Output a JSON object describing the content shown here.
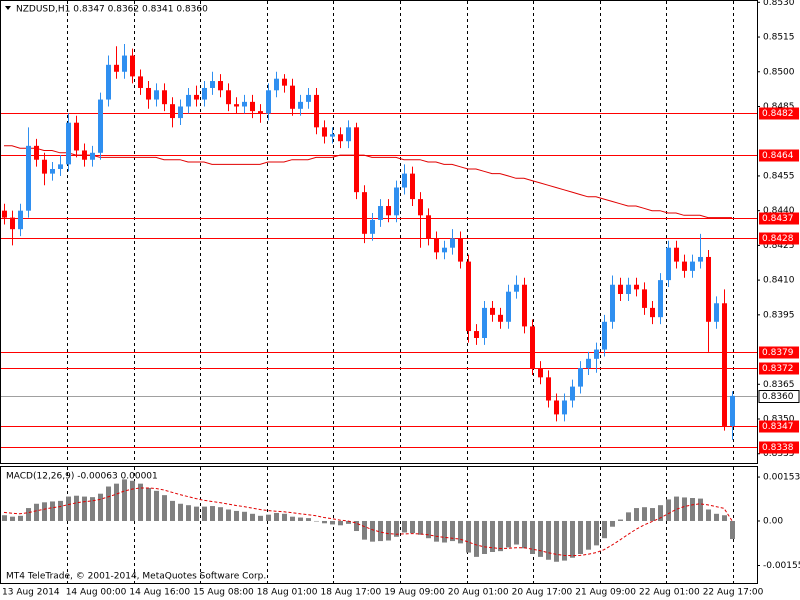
{
  "chart_data": [
    {
      "type": "candlestick",
      "title": "NZDUSD,H1  0.8347 0.8362 0.8341 0.8360",
      "up_color": "#2f8ff0",
      "down_color": "#ff0000",
      "open": [
        0.844,
        0.8437,
        0.8432,
        0.844,
        0.8468,
        0.8462,
        0.8456,
        0.8458,
        0.846,
        0.8478,
        0.8466,
        0.8462,
        0.8465,
        0.8488,
        0.8503,
        0.85,
        0.8507,
        0.8498,
        0.8493,
        0.8488,
        0.8492,
        0.8486,
        0.848,
        0.8485,
        0.849,
        0.8488,
        0.8493,
        0.8496,
        0.8492,
        0.8486,
        0.8485,
        0.8487,
        0.8483,
        0.8482,
        0.8492,
        0.8497,
        0.8494,
        0.8484,
        0.8487,
        0.849,
        0.8476,
        0.8472,
        0.8473,
        0.847,
        0.8476,
        0.8448,
        0.843,
        0.8436,
        0.8442,
        0.8438,
        0.845,
        0.8456,
        0.8445,
        0.8438,
        0.8428,
        0.8422,
        0.8424,
        0.8428,
        0.8418,
        0.8388,
        0.8385,
        0.8398,
        0.8395,
        0.8392,
        0.8405,
        0.8408,
        0.839,
        0.8372,
        0.8368,
        0.8358,
        0.8352,
        0.8358,
        0.8364,
        0.8372,
        0.8376,
        0.838,
        0.8392,
        0.8408,
        0.8404,
        0.8408,
        0.8406,
        0.8398,
        0.8394,
        0.841,
        0.8424,
        0.8418,
        0.8414,
        0.8418,
        0.842,
        0.8392,
        0.84,
        0.8347
      ],
      "high": [
        0.8443,
        0.844,
        0.8443,
        0.8476,
        0.8471,
        0.8465,
        0.8461,
        0.8464,
        0.8482,
        0.8481,
        0.8469,
        0.8468,
        0.8491,
        0.8507,
        0.8511,
        0.8512,
        0.851,
        0.8501,
        0.8496,
        0.8495,
        0.8495,
        0.8489,
        0.8488,
        0.8493,
        0.8494,
        0.8496,
        0.85,
        0.8499,
        0.8495,
        0.8489,
        0.849,
        0.849,
        0.8486,
        0.8495,
        0.85,
        0.8499,
        0.8497,
        0.849,
        0.8493,
        0.8493,
        0.8479,
        0.8476,
        0.8476,
        0.8479,
        0.8478,
        0.8451,
        0.8439,
        0.8445,
        0.8445,
        0.8453,
        0.846,
        0.8459,
        0.8448,
        0.8441,
        0.8431,
        0.8427,
        0.8432,
        0.8431,
        0.8421,
        0.8391,
        0.8401,
        0.8401,
        0.8398,
        0.8408,
        0.8412,
        0.8411,
        0.8393,
        0.8375,
        0.8371,
        0.8361,
        0.8361,
        0.8367,
        0.8375,
        0.8379,
        0.8383,
        0.8395,
        0.8412,
        0.8411,
        0.8411,
        0.8411,
        0.8409,
        0.8401,
        0.8413,
        0.8427,
        0.8427,
        0.8421,
        0.8421,
        0.843,
        0.8423,
        0.8403,
        0.8406,
        0.8362
      ],
      "low": [
        0.8434,
        0.8425,
        0.8429,
        0.8437,
        0.8459,
        0.8451,
        0.8453,
        0.8455,
        0.8457,
        0.8463,
        0.8459,
        0.8459,
        0.8462,
        0.8485,
        0.8497,
        0.8497,
        0.8495,
        0.849,
        0.8484,
        0.8485,
        0.8483,
        0.8476,
        0.8477,
        0.8482,
        0.8485,
        0.8485,
        0.849,
        0.8489,
        0.8483,
        0.8482,
        0.8482,
        0.848,
        0.8478,
        0.8479,
        0.8489,
        0.8491,
        0.8481,
        0.8481,
        0.8484,
        0.8473,
        0.8469,
        0.8469,
        0.8467,
        0.8467,
        0.8445,
        0.8426,
        0.8427,
        0.8433,
        0.8435,
        0.8435,
        0.8447,
        0.8442,
        0.8424,
        0.8425,
        0.8419,
        0.8419,
        0.8421,
        0.8415,
        0.8383,
        0.8382,
        0.8382,
        0.8392,
        0.8389,
        0.8389,
        0.8402,
        0.8387,
        0.8369,
        0.8365,
        0.8355,
        0.8349,
        0.8349,
        0.8355,
        0.8361,
        0.8369,
        0.837,
        0.8377,
        0.8389,
        0.8401,
        0.8401,
        0.8403,
        0.8395,
        0.8391,
        0.8391,
        0.8407,
        0.8415,
        0.8411,
        0.8411,
        0.8415,
        0.8379,
        0.8389,
        0.8345,
        0.8341
      ],
      "close": [
        0.8437,
        0.8432,
        0.844,
        0.8468,
        0.8462,
        0.8456,
        0.8458,
        0.846,
        0.8478,
        0.8466,
        0.8462,
        0.8465,
        0.8488,
        0.8503,
        0.85,
        0.8507,
        0.8498,
        0.8493,
        0.8488,
        0.8492,
        0.8486,
        0.848,
        0.8485,
        0.849,
        0.8488,
        0.8493,
        0.8496,
        0.8492,
        0.8486,
        0.8485,
        0.8487,
        0.8483,
        0.8482,
        0.8492,
        0.8497,
        0.8494,
        0.8484,
        0.8487,
        0.849,
        0.8476,
        0.8472,
        0.8473,
        0.847,
        0.8476,
        0.8448,
        0.843,
        0.8436,
        0.8442,
        0.8438,
        0.845,
        0.8456,
        0.8445,
        0.8438,
        0.8428,
        0.8422,
        0.8424,
        0.8428,
        0.8418,
        0.8388,
        0.8385,
        0.8398,
        0.8395,
        0.8392,
        0.8405,
        0.8408,
        0.839,
        0.8372,
        0.8368,
        0.8358,
        0.8352,
        0.8358,
        0.8364,
        0.8372,
        0.8376,
        0.838,
        0.8392,
        0.8408,
        0.8404,
        0.8408,
        0.8406,
        0.8398,
        0.8394,
        0.841,
        0.8424,
        0.8418,
        0.8414,
        0.8418,
        0.842,
        0.8392,
        0.84,
        0.8347,
        0.836
      ],
      "ma": {
        "color": "#e00000",
        "values": [
          0.8468,
          0.8468,
          0.8467,
          0.8467,
          0.8467,
          0.8466,
          0.8466,
          0.8465,
          0.8465,
          0.8464,
          0.8464,
          0.8464,
          0.8463,
          0.8463,
          0.8463,
          0.8463,
          0.8463,
          0.8463,
          0.8463,
          0.8463,
          0.8462,
          0.8462,
          0.8462,
          0.8461,
          0.8461,
          0.8461,
          0.846,
          0.846,
          0.846,
          0.846,
          0.846,
          0.846,
          0.846,
          0.8461,
          0.8461,
          0.8461,
          0.8462,
          0.8462,
          0.8462,
          0.8463,
          0.8463,
          0.8463,
          0.8464,
          0.8464,
          0.8464,
          0.8464,
          0.8463,
          0.8463,
          0.8463,
          0.8463,
          0.8462,
          0.8462,
          0.8462,
          0.8461,
          0.8461,
          0.846,
          0.846,
          0.8459,
          0.8458,
          0.8458,
          0.8457,
          0.8456,
          0.8456,
          0.8455,
          0.8454,
          0.8454,
          0.8453,
          0.8452,
          0.8451,
          0.845,
          0.8449,
          0.8448,
          0.8447,
          0.8446,
          0.8446,
          0.8445,
          0.8444,
          0.8443,
          0.8442,
          0.8442,
          0.8441,
          0.844,
          0.844,
          0.8439,
          0.8439,
          0.8438,
          0.8438,
          0.8438,
          0.8437,
          0.8437,
          0.8437,
          0.8437
        ]
      },
      "levels": [
        0.8482,
        0.8464,
        0.8437,
        0.8428,
        0.8379,
        0.8372,
        0.8347,
        0.8338
      ],
      "level_color": "#ff0000",
      "current": {
        "value": 0.836,
        "label": "0.8360"
      },
      "ylim": [
        0.8331,
        0.8531
      ],
      "yticks": [
        {
          "value": 0.853,
          "label": "0.8530"
        },
        0.8515,
        {
          "value": 0.85,
          "label": "0.8500"
        },
        0.8485,
        0.8455,
        {
          "value": 0.844,
          "label": "0.8440"
        },
        0.8425,
        {
          "value": 0.841,
          "label": "0.8410"
        },
        0.8395,
        0.8365,
        {
          "value": 0.835,
          "label": "0.8350"
        },
        0.8335
      ]
    },
    {
      "type": "bar",
      "title": "MACD(12,26,9) -0.00063 0.00001",
      "histogram": {
        "color": "#808080",
        "values": [
          0.0002,
          0.00015,
          0.00018,
          0.00045,
          0.0006,
          0.00065,
          0.00068,
          0.0007,
          0.00085,
          0.00088,
          0.00085,
          0.00083,
          0.00095,
          0.0012,
          0.0013,
          0.00145,
          0.0014,
          0.0013,
          0.00115,
          0.00105,
          0.0009,
          0.0007,
          0.0006,
          0.00055,
          0.0005,
          0.0005,
          0.00052,
          0.00048,
          0.0004,
          0.00035,
          0.00032,
          0.00025,
          0.00018,
          0.00022,
          0.00028,
          0.00025,
          0.00015,
          0.00012,
          0.0001,
          0.0,
          -8e-05,
          -0.00012,
          -0.00015,
          -0.0001,
          -0.00035,
          -0.00065,
          -0.00072,
          -0.0007,
          -0.00068,
          -0.00055,
          -0.0004,
          -0.00042,
          -0.00048,
          -0.0006,
          -0.00072,
          -0.00075,
          -0.0007,
          -0.00078,
          -0.0011,
          -0.00125,
          -0.00115,
          -0.00108,
          -0.00105,
          -0.00092,
          -0.00082,
          -0.00095,
          -0.00115,
          -0.00125,
          -0.00135,
          -0.00142,
          -0.00138,
          -0.00128,
          -0.00115,
          -0.001,
          -0.00085,
          -0.0006,
          -0.0002,
          5e-05,
          0.0003,
          0.00045,
          0.00048,
          0.00045,
          0.00055,
          0.00075,
          0.00085,
          0.00082,
          0.0008,
          0.00078,
          0.0004,
          0.00025,
          0.0002,
          -0.00063
        ]
      },
      "signal": {
        "color": "#e00000",
        "values": [
          0.0003,
          0.00027,
          0.00025,
          0.00029,
          0.00035,
          0.00041,
          0.00046,
          0.0005,
          0.00057,
          0.00063,
          0.00067,
          0.0007,
          0.00075,
          0.00084,
          0.00093,
          0.00104,
          0.00111,
          0.00115,
          0.00115,
          0.00113,
          0.00108,
          0.001,
          0.00092,
          0.00085,
          0.00078,
          0.00072,
          0.00068,
          0.00064,
          0.00059,
          0.00054,
          0.0005,
          0.00045,
          0.0004,
          0.00036,
          0.00034,
          0.00032,
          0.00029,
          0.00025,
          0.00022,
          0.00018,
          0.00012,
          8e-05,
          3e-05,
          0.0,
          -7e-05,
          -0.00019,
          -0.0003,
          -0.00038,
          -0.00044,
          -0.00046,
          -0.00045,
          -0.00044,
          -0.00045,
          -0.00048,
          -0.00053,
          -0.00057,
          -0.0006,
          -0.00063,
          -0.00073,
          -0.00083,
          -0.0009,
          -0.00093,
          -0.00096,
          -0.00095,
          -0.00093,
          -0.00093,
          -0.00098,
          -0.00103,
          -0.0011,
          -0.00116,
          -0.0012,
          -0.00121,
          -0.0012,
          -0.00116,
          -0.0011,
          -0.001,
          -0.00084,
          -0.00066,
          -0.00047,
          -0.00029,
          -0.00014,
          -2e-05,
          0.0001,
          0.00025,
          0.0004,
          0.0005,
          0.00056,
          0.0006,
          0.00056,
          0.0005,
          0.00044,
          1e-05
        ]
      },
      "ylim": [
        -0.00216,
        0.00188
      ],
      "yticks": [
        0.00153,
        {
          "value": 0,
          "label": "0.00"
        },
        -0.00155
      ],
      "xlabels": [
        "13 Aug 2014",
        "14 Aug 00:00",
        "14 Aug 16:00",
        "15 Aug 08:00",
        "18 Aug 01:00",
        "18 Aug 17:00",
        "19 Aug 09:00",
        "20 Aug 01:00",
        "20 Aug 17:00",
        "21 Aug 09:00",
        "22 Aug 01:00",
        "22 Aug 17:00"
      ]
    }
  ],
  "footer": "MT4 TeleTrade, © 2001-2014, MetaQuotes Software Corp."
}
